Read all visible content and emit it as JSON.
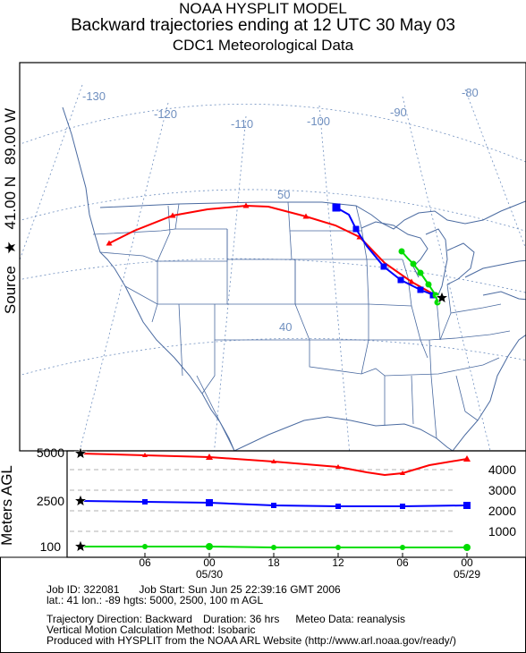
{
  "header": {
    "line1": "NOAA HYSPLIT MODEL",
    "line2": "Backward trajectories ending at 12 UTC 30 May 03",
    "line3": "CDC1 Meteorological Data"
  },
  "source": {
    "label": "Source",
    "star": "★",
    "lat": "41.00 N",
    "lon": "89.00 W"
  },
  "map": {
    "longitude_labels": [
      "-130",
      "-120",
      "-110",
      "-100",
      "-90",
      "-80"
    ],
    "latitude_labels": [
      "50",
      "40"
    ]
  },
  "trajectories": [
    {
      "height": "5000",
      "color": "#ff0000",
      "marker": "triangle"
    },
    {
      "height": "2500",
      "color": "#0000ff",
      "marker": "square"
    },
    {
      "height": "100",
      "color": "#00dd00",
      "marker": "circle"
    }
  ],
  "profile": {
    "ylabel": "Meters AGL",
    "left_levels": [
      "5000",
      "2500",
      "100"
    ],
    "right_scale": [
      "4000",
      "3000",
      "2000",
      "1000"
    ],
    "time_ticks": [
      "06",
      "00",
      "18",
      "12",
      "06",
      "00"
    ],
    "date_labels": [
      "05/30",
      "05/29"
    ]
  },
  "footer": {
    "job_id": "Job ID: 322081",
    "job_start": "Job Start: Sun Jun 25 22:39:16 GMT 2006",
    "location": "lat.: 41  lon.: -89  hgts: 5000, 2500, 100 m AGL",
    "direction": "Trajectory Direction: Backward",
    "duration": "Duration: 36 hrs",
    "meteo": "Meteo Data: reanalysis",
    "vertical": "Vertical Motion Calculation Method: Isobaric",
    "produced": "Produced with HYSPLIT from the NOAA ARL Website (http://www.arl.noaa.gov/ready/)"
  },
  "colors": {
    "graticule": "#6f8fbf",
    "borders": "#4a6aa0",
    "frame": "#000000"
  }
}
